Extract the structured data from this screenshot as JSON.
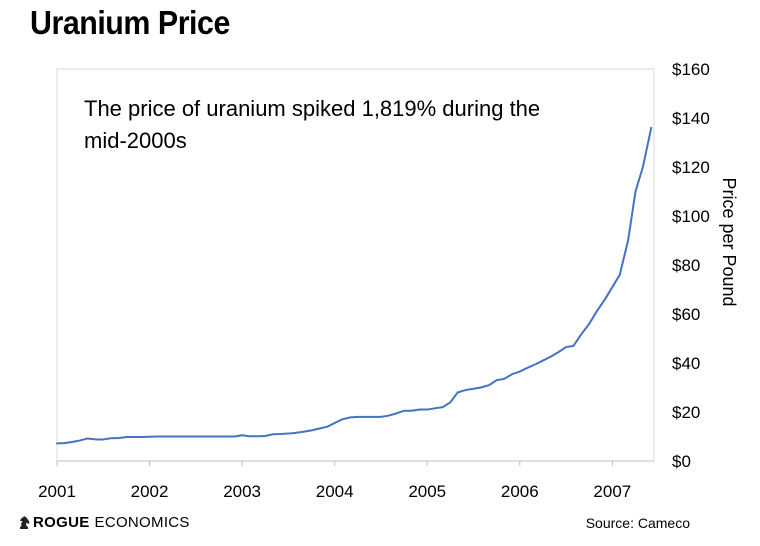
{
  "brand": {
    "strong": "ROGUE",
    "light": "ECONOMICS",
    "logo_icon": "knight-chess-piece-icon"
  },
  "source": "Source: Cameco",
  "colors": {
    "line": "#4472C4",
    "frame": "#D9D9D9",
    "text": "#000000"
  },
  "chart_data": {
    "type": "line",
    "title": "Uranium Price",
    "annotation": "The price of uranium spiked 1,819% during the mid-2000s",
    "annotation_lines": [
      "The price of uranium spiked 1,819% during the",
      "mid-2000s"
    ],
    "xlabel": "",
    "ylabel": "Price per Pound",
    "y_axis_side": "right",
    "xlim": [
      2001,
      2007.45
    ],
    "ylim": [
      0,
      160
    ],
    "x_ticks": [
      2001,
      2002,
      2003,
      2004,
      2005,
      2006,
      2007
    ],
    "x_tick_labels": [
      "2001",
      "2002",
      "2003",
      "2004",
      "2005",
      "2006",
      "2007"
    ],
    "y_ticks": [
      0,
      20,
      40,
      60,
      80,
      100,
      120,
      140,
      160
    ],
    "y_tick_labels": [
      "$0",
      "$20",
      "$40",
      "$60",
      "$80",
      "$100",
      "$120",
      "$140",
      "$160"
    ],
    "grid": false,
    "series": [
      {
        "name": "Uranium Price",
        "x": [
          2001.0,
          2001.08,
          2001.17,
          2001.25,
          2001.33,
          2001.42,
          2001.5,
          2001.58,
          2001.67,
          2001.75,
          2001.83,
          2001.92,
          2002.0,
          2002.08,
          2002.17,
          2002.25,
          2002.33,
          2002.42,
          2002.5,
          2002.58,
          2002.67,
          2002.75,
          2002.83,
          2002.92,
          2003.0,
          2003.08,
          2003.17,
          2003.25,
          2003.33,
          2003.42,
          2003.5,
          2003.58,
          2003.67,
          2003.75,
          2003.83,
          2003.92,
          2004.0,
          2004.08,
          2004.17,
          2004.25,
          2004.33,
          2004.42,
          2004.5,
          2004.58,
          2004.67,
          2004.75,
          2004.83,
          2004.92,
          2005.0,
          2005.08,
          2005.17,
          2005.25,
          2005.33,
          2005.42,
          2005.5,
          2005.58,
          2005.67,
          2005.75,
          2005.83,
          2005.92,
          2006.0,
          2006.08,
          2006.17,
          2006.25,
          2006.33,
          2006.42,
          2006.5,
          2006.58,
          2006.67,
          2006.75,
          2006.83,
          2006.92,
          2007.0,
          2007.08,
          2007.17,
          2007.25,
          2007.33,
          2007.42
        ],
        "values": [
          7.2,
          7.3,
          7.8,
          8.4,
          9.2,
          8.8,
          8.8,
          9.3,
          9.4,
          9.8,
          9.8,
          9.8,
          9.9,
          10.0,
          10.0,
          10.0,
          10.0,
          10.0,
          10.0,
          10.0,
          10.0,
          10.0,
          10.0,
          10.0,
          10.5,
          10.1,
          10.1,
          10.2,
          10.9,
          11.0,
          11.2,
          11.5,
          12.0,
          12.5,
          13.2,
          14.0,
          15.5,
          17.0,
          17.8,
          18.0,
          18.0,
          18.0,
          18.0,
          18.5,
          19.5,
          20.5,
          20.5,
          21.0,
          21.0,
          21.5,
          22.0,
          24.0,
          28.0,
          29.0,
          29.5,
          30.0,
          31.0,
          33.0,
          33.5,
          35.5,
          36.5,
          38.0,
          39.5,
          41.0,
          42.5,
          44.5,
          46.5,
          47.0,
          52.0,
          56.0,
          61.0,
          66.0,
          71.0,
          76.0,
          90.0,
          110.0,
          120.0,
          136.0
        ]
      }
    ]
  }
}
